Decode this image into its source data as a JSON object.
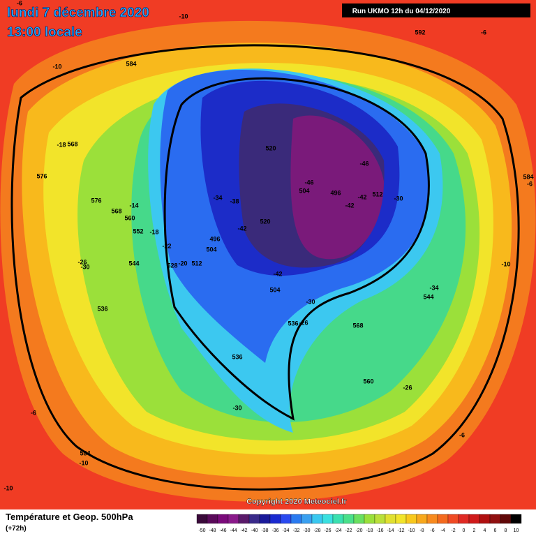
{
  "header": {
    "date": "lundi 7 décembre 2020",
    "time": "13:00 locale",
    "run": "Run UKMO 12h du 04/12/2020"
  },
  "footer": {
    "title": "Température et Geop. 500hPa",
    "lead": "(+72h)",
    "copyright": "Copyright 2020 Meteociel.fr"
  },
  "colorbar": {
    "ticks": [
      -50,
      -48,
      -46,
      -44,
      -42,
      -40,
      -38,
      -36,
      -34,
      -32,
      -30,
      -28,
      -26,
      -24,
      -22,
      -20,
      -18,
      -16,
      -14,
      -12,
      -10,
      -8,
      -6,
      -4,
      -2,
      0,
      2,
      4,
      6,
      8,
      10
    ]
  },
  "map_labels": [
    "-6",
    "-10",
    "592",
    "-6",
    "-10",
    "584",
    "-18",
    "568",
    "576",
    "520",
    "-46",
    "-46",
    "504",
    "496",
    "-42",
    "512",
    "-30",
    "584",
    "-6",
    "576",
    "-34",
    "-38",
    "-14",
    "568",
    "-42",
    "560",
    "520",
    "-42",
    "552",
    "-18",
    "496",
    "504",
    "-22",
    "-26",
    "-30",
    "544",
    "528",
    "-20",
    "512",
    "-42",
    "-10",
    "504",
    "-34",
    "544",
    "-30",
    "536",
    "536",
    "-26",
    "568",
    "536",
    "560",
    "-26",
    "-30",
    "-6",
    "-6",
    "584",
    "-10",
    "-10"
  ]
}
